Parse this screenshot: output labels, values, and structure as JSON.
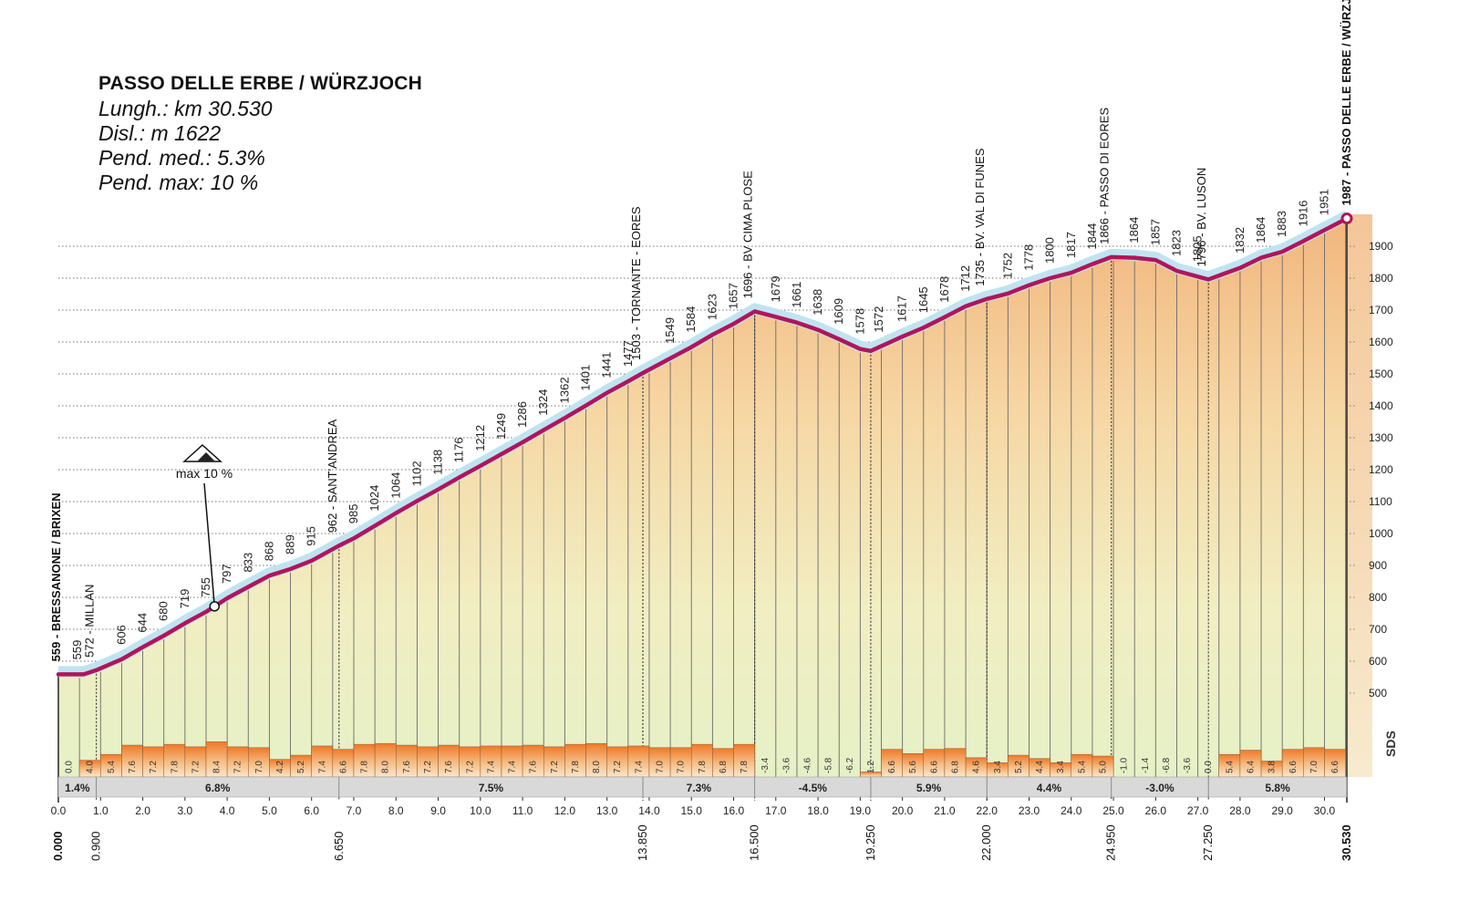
{
  "info": {
    "title": "PASSO DELLE ERBE / WÜRZJOCH",
    "length": "Lungh.: km 30.530",
    "climb": "Disl.: m 1622",
    "avg_grade": "Pend. med.: 5.3%",
    "max_grade": "Pend. max: 10 %"
  },
  "max_marker": {
    "label": "max 10 %",
    "km": 3.7
  },
  "logo": "SDS",
  "colors": {
    "profile_line": "#b0155c",
    "grade_bar_top": "#f07a2a",
    "gradient_bottom": "#e8f2c8",
    "gradient_top": "#f2c18e"
  },
  "chart_data": {
    "type": "area",
    "xlim": [
      0,
      30.53
    ],
    "ylim_labels": [
      500,
      1900
    ],
    "ylabels": [
      "500",
      "600",
      "700",
      "800",
      "900",
      "1000",
      "1100",
      "1200",
      "1300",
      "1400",
      "1500",
      "1600",
      "1700",
      "1800",
      "1900"
    ],
    "xticks": [
      "0.0",
      "1.0",
      "2.0",
      "3.0",
      "4.0",
      "5.0",
      "6.0",
      "7.0",
      "8.0",
      "9.0",
      "10.0",
      "11.0",
      "12.0",
      "13.0",
      "14.0",
      "15.0",
      "16.0",
      "17.0",
      "18.0",
      "19.0",
      "20.0",
      "21.0",
      "22.0",
      "23.0",
      "24.0",
      "25.0",
      "26.0",
      "27.0",
      "28.0",
      "29.0",
      "30.0"
    ],
    "profile": [
      {
        "km": 0,
        "alt": 559
      },
      {
        "km": 0.6,
        "alt": 559
      },
      {
        "km": 0.9,
        "alt": 572
      },
      {
        "km": 1.5,
        "alt": 606
      },
      {
        "km": 2.0,
        "alt": 644
      },
      {
        "km": 2.5,
        "alt": 680
      },
      {
        "km": 3.0,
        "alt": 719
      },
      {
        "km": 3.5,
        "alt": 755
      },
      {
        "km": 4.0,
        "alt": 797
      },
      {
        "km": 4.5,
        "alt": 833
      },
      {
        "km": 5.0,
        "alt": 868
      },
      {
        "km": 5.5,
        "alt": 889
      },
      {
        "km": 6.0,
        "alt": 915
      },
      {
        "km": 6.65,
        "alt": 962
      },
      {
        "km": 7.0,
        "alt": 985
      },
      {
        "km": 7.5,
        "alt": 1024
      },
      {
        "km": 8.0,
        "alt": 1064
      },
      {
        "km": 8.5,
        "alt": 1102
      },
      {
        "km": 9.0,
        "alt": 1138
      },
      {
        "km": 9.5,
        "alt": 1176
      },
      {
        "km": 10.0,
        "alt": 1212
      },
      {
        "km": 10.5,
        "alt": 1249
      },
      {
        "km": 11.0,
        "alt": 1286
      },
      {
        "km": 11.5,
        "alt": 1324
      },
      {
        "km": 12.0,
        "alt": 1362
      },
      {
        "km": 12.5,
        "alt": 1401
      },
      {
        "km": 13.0,
        "alt": 1441
      },
      {
        "km": 13.5,
        "alt": 1477
      },
      {
        "km": 13.85,
        "alt": 1503
      },
      {
        "km": 14.5,
        "alt": 1549
      },
      {
        "km": 15.0,
        "alt": 1584
      },
      {
        "km": 15.5,
        "alt": 1623
      },
      {
        "km": 16.0,
        "alt": 1657
      },
      {
        "km": 16.5,
        "alt": 1696
      },
      {
        "km": 17.0,
        "alt": 1679
      },
      {
        "km": 17.5,
        "alt": 1661
      },
      {
        "km": 18.0,
        "alt": 1638
      },
      {
        "km": 18.5,
        "alt": 1609
      },
      {
        "km": 19.0,
        "alt": 1578
      },
      {
        "km": 19.25,
        "alt": 1572
      },
      {
        "km": 20.0,
        "alt": 1617
      },
      {
        "km": 20.5,
        "alt": 1645
      },
      {
        "km": 21.0,
        "alt": 1678
      },
      {
        "km": 21.5,
        "alt": 1712
      },
      {
        "km": 22.0,
        "alt": 1735
      },
      {
        "km": 22.5,
        "alt": 1752
      },
      {
        "km": 23.0,
        "alt": 1778
      },
      {
        "km": 23.5,
        "alt": 1800
      },
      {
        "km": 24.0,
        "alt": 1817
      },
      {
        "km": 24.5,
        "alt": 1844
      },
      {
        "km": 24.95,
        "alt": 1866
      },
      {
        "km": 25.5,
        "alt": 1864
      },
      {
        "km": 26.0,
        "alt": 1857
      },
      {
        "km": 26.5,
        "alt": 1823
      },
      {
        "km": 27.0,
        "alt": 1805
      },
      {
        "km": 27.25,
        "alt": 1796
      },
      {
        "km": 28.0,
        "alt": 1832
      },
      {
        "km": 28.5,
        "alt": 1864
      },
      {
        "km": 29.0,
        "alt": 1883
      },
      {
        "km": 29.5,
        "alt": 1916
      },
      {
        "km": 30.0,
        "alt": 1951
      },
      {
        "km": 30.53,
        "alt": 1987
      }
    ],
    "elevation_labels": [
      {
        "km": 0.45,
        "label": "559"
      },
      {
        "km": 1.5,
        "label": "606"
      },
      {
        "km": 2.0,
        "label": "644"
      },
      {
        "km": 2.5,
        "label": "680"
      },
      {
        "km": 3.0,
        "label": "719"
      },
      {
        "km": 3.5,
        "label": "755"
      },
      {
        "km": 4.0,
        "label": "797"
      },
      {
        "km": 4.5,
        "label": "833"
      },
      {
        "km": 5.0,
        "label": "868"
      },
      {
        "km": 5.5,
        "label": "889"
      },
      {
        "km": 6.0,
        "label": "915"
      },
      {
        "km": 7.0,
        "label": "985"
      },
      {
        "km": 7.5,
        "label": "1024"
      },
      {
        "km": 8.0,
        "label": "1064"
      },
      {
        "km": 8.5,
        "label": "1102"
      },
      {
        "km": 9.0,
        "label": "1138"
      },
      {
        "km": 9.5,
        "label": "1176"
      },
      {
        "km": 10.0,
        "label": "1212"
      },
      {
        "km": 10.5,
        "label": "1249"
      },
      {
        "km": 11.0,
        "label": "1286"
      },
      {
        "km": 11.5,
        "label": "1324"
      },
      {
        "km": 12.0,
        "label": "1362"
      },
      {
        "km": 12.5,
        "label": "1401"
      },
      {
        "km": 13.0,
        "label": "1441"
      },
      {
        "km": 13.5,
        "label": "1477"
      },
      {
        "km": 14.5,
        "label": "1549"
      },
      {
        "km": 15.0,
        "label": "1584"
      },
      {
        "km": 15.5,
        "label": "1623"
      },
      {
        "km": 16.0,
        "label": "1657"
      },
      {
        "km": 17.0,
        "label": "1679"
      },
      {
        "km": 17.5,
        "label": "1661"
      },
      {
        "km": 18.0,
        "label": "1638"
      },
      {
        "km": 18.5,
        "label": "1609"
      },
      {
        "km": 19.0,
        "label": "1578"
      },
      {
        "km": 19.45,
        "label": "1572"
      },
      {
        "km": 20.0,
        "label": "1617"
      },
      {
        "km": 20.5,
        "label": "1645"
      },
      {
        "km": 21.0,
        "label": "1678"
      },
      {
        "km": 21.5,
        "label": "1712"
      },
      {
        "km": 22.5,
        "label": "1752"
      },
      {
        "km": 23.0,
        "label": "1778"
      },
      {
        "km": 23.5,
        "label": "1800"
      },
      {
        "km": 24.0,
        "label": "1817"
      },
      {
        "km": 24.5,
        "label": "1844"
      },
      {
        "km": 25.5,
        "label": "1864"
      },
      {
        "km": 26.0,
        "label": "1857"
      },
      {
        "km": 26.5,
        "label": "1823"
      },
      {
        "km": 27.0,
        "label": "1805"
      },
      {
        "km": 28.0,
        "label": "1832"
      },
      {
        "km": 28.5,
        "label": "1864"
      },
      {
        "km": 29.0,
        "label": "1883"
      },
      {
        "km": 29.5,
        "label": "1916"
      },
      {
        "km": 30.0,
        "label": "1951"
      }
    ],
    "points": [
      {
        "km": 0,
        "km_label": "0.000",
        "label": "559 - BRESSANONE / BRIXEN",
        "bold": true
      },
      {
        "km": 0.9,
        "km_label": "0.900",
        "label": "572 - MILLAN",
        "bold": false
      },
      {
        "km": 6.65,
        "km_label": "6.650",
        "label": "962 - SANT'ANDREA",
        "bold": false
      },
      {
        "km": 13.85,
        "km_label": "13.850",
        "label": "1503 - TORNANTE - EORES",
        "bold": false
      },
      {
        "km": 16.5,
        "km_label": "16.500",
        "label": "1696 - BV CIMA PLOSE",
        "bold": false
      },
      {
        "km": 19.25,
        "km_label": "19.250",
        "label": "",
        "bold": false
      },
      {
        "km": 22.0,
        "km_label": "22.000",
        "label": "1735 - BV. VAL DI FUNES",
        "bold": false
      },
      {
        "km": 24.95,
        "km_label": "24.950",
        "label": "1866 - PASSO DI EORES",
        "bold": false
      },
      {
        "km": 27.25,
        "km_label": "27.250",
        "label": "1796 - BV. LUSON",
        "bold": false
      },
      {
        "km": 30.53,
        "km_label": "30.530",
        "label": "1987 - PASSO DELLE ERBE / WÜRZJOCH",
        "bold": true
      }
    ],
    "grades": [
      0.0,
      4.0,
      5.4,
      7.6,
      7.2,
      7.8,
      7.2,
      8.4,
      7.2,
      7.0,
      4.2,
      5.2,
      7.4,
      6.6,
      7.8,
      8.0,
      7.6,
      7.2,
      7.6,
      7.2,
      7.4,
      7.4,
      7.6,
      7.2,
      7.8,
      8.0,
      7.2,
      7.4,
      7.0,
      7.0,
      7.8,
      6.8,
      7.8,
      -3.4,
      -3.6,
      -4.6,
      -5.8,
      -6.2,
      1.2,
      6.6,
      5.6,
      6.6,
      6.8,
      4.6,
      3.4,
      5.2,
      4.4,
      3.4,
      5.4,
      5.0,
      -1.0,
      -1.4,
      -6.8,
      -3.6,
      0.0,
      5.4,
      6.4,
      3.8,
      6.6,
      7.0,
      6.6
    ],
    "segments": [
      {
        "from": 0,
        "to": 0.9,
        "label": "1.4%"
      },
      {
        "from": 0.9,
        "to": 6.65,
        "label": "6.8%"
      },
      {
        "from": 6.65,
        "to": 13.85,
        "label": "7.5%"
      },
      {
        "from": 13.85,
        "to": 16.5,
        "label": "7.3%"
      },
      {
        "from": 16.5,
        "to": 19.25,
        "label": "-4.5%"
      },
      {
        "from": 19.25,
        "to": 22.0,
        "label": "5.9%"
      },
      {
        "from": 22.0,
        "to": 24.95,
        "label": "4.4%"
      },
      {
        "from": 24.95,
        "to": 27.25,
        "label": "-3.0%"
      },
      {
        "from": 27.25,
        "to": 30.53,
        "label": "5.8%"
      }
    ]
  }
}
